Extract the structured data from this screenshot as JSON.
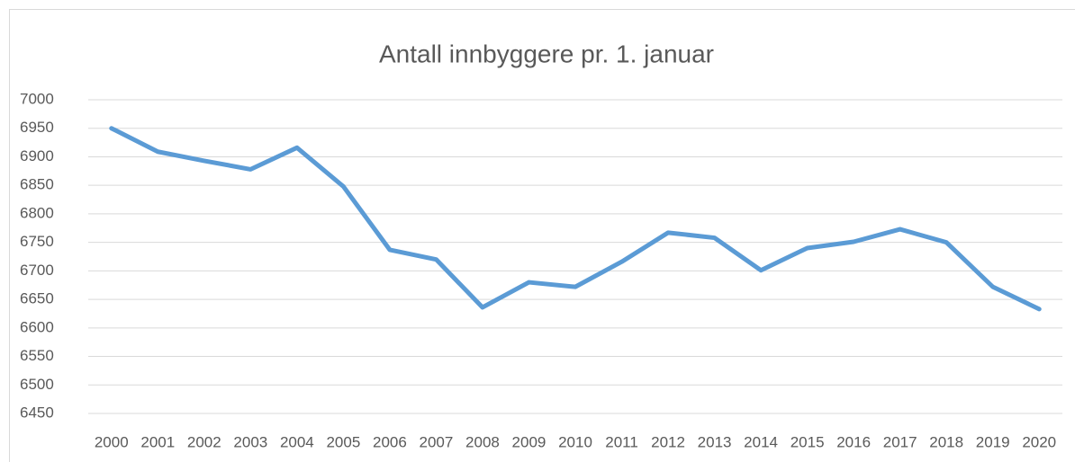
{
  "chart_data": {
    "type": "line",
    "title": "Antall innbyggere pr. 1. januar",
    "categories": [
      "2000",
      "2001",
      "2002",
      "2003",
      "2004",
      "2005",
      "2006",
      "2007",
      "2008",
      "2009",
      "2010",
      "2011",
      "2012",
      "2013",
      "2014",
      "2015",
      "2016",
      "2017",
      "2018",
      "2019",
      "2020"
    ],
    "series": [
      {
        "color": "#5b9bd5",
        "values": [
          6950,
          6909,
          6893,
          6878,
          6916,
          6848,
          6737,
          6720,
          6636,
          6680,
          6672,
          6716,
          6767,
          6758,
          6701,
          6740,
          6751,
          6773,
          6750,
          6672,
          6633
        ]
      }
    ],
    "ylim": [
      6450,
      7000
    ],
    "yticks": [
      6450,
      6500,
      6550,
      6600,
      6650,
      6700,
      6750,
      6800,
      6850,
      6900,
      6950,
      7000
    ],
    "grid": true
  }
}
